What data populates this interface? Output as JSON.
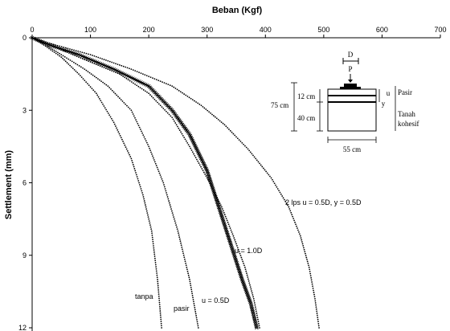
{
  "chart_data": {
    "type": "scatter",
    "xlabel": "Beban (Kgf)",
    "ylabel": "Settlement (mm)",
    "xlim": [
      0,
      700
    ],
    "ylim": [
      0,
      12
    ],
    "y_inverted": true,
    "x_axis_position": "top",
    "x_ticks": [
      "0",
      "100",
      "200",
      "300",
      "400",
      "500",
      "600",
      "700"
    ],
    "y_ticks": [
      "0",
      "3",
      "6",
      "9",
      "12"
    ],
    "grid": false,
    "legend": "none",
    "series": [
      {
        "name": "tanpa",
        "marker": "dot",
        "x": [
          0,
          20,
          50,
          80,
          110,
          140,
          170,
          190,
          205,
          215,
          222
        ],
        "y": [
          0,
          0.3,
          0.8,
          1.5,
          2.3,
          3.5,
          5.0,
          6.5,
          8.0,
          10.0,
          12.0
        ]
      },
      {
        "name": "pasir",
        "marker": "dot",
        "x": [
          0,
          20,
          50,
          90,
          130,
          170,
          200,
          225,
          250,
          270,
          285
        ],
        "y": [
          0,
          0.25,
          0.7,
          1.3,
          2.0,
          3.0,
          4.5,
          6.0,
          8.0,
          10.0,
          12.0
        ]
      },
      {
        "name": "u = 0.5D",
        "marker": "dot",
        "x": [
          0,
          30,
          80,
          150,
          200,
          240,
          270,
          300,
          325,
          345,
          365,
          380,
          390
        ],
        "y": [
          0,
          0.3,
          0.8,
          1.5,
          2.3,
          3.3,
          4.5,
          5.8,
          7.0,
          8.2,
          9.5,
          10.8,
          12.0
        ]
      },
      {
        "name": "u = 1.0D",
        "marker": "star",
        "x": [
          0,
          30,
          80,
          140,
          200,
          240,
          270,
          300,
          320,
          340,
          360,
          375,
          385
        ],
        "y": [
          0,
          0.3,
          0.7,
          1.3,
          2.0,
          3.0,
          4.0,
          5.5,
          7.0,
          8.5,
          10.0,
          11.0,
          12.0
        ]
      },
      {
        "name": "2 lps u = 0.5D, y = 0.5D",
        "marker": "dot",
        "x": [
          0,
          40,
          100,
          170,
          240,
          290,
          330,
          370,
          410,
          440,
          460,
          475,
          485,
          492
        ],
        "y": [
          0,
          0.3,
          0.7,
          1.3,
          2.0,
          2.8,
          3.6,
          4.6,
          5.8,
          7.0,
          8.2,
          9.5,
          10.8,
          12.0
        ]
      }
    ],
    "annotations": {
      "tanpa": "tanpa",
      "pasir": "pasir",
      "u05": "u = 0.5D",
      "u10": "u = 1.0D",
      "two_lps": "2 lps u = 0.5D, y = 0.5D"
    },
    "inset_labels": {
      "D": "D",
      "P": "P",
      "u": "u",
      "y": "y",
      "pasir": "Pasir",
      "tanah1": "Tanah",
      "tanah2": "kohesif",
      "d12": "12 cm",
      "d75": "75 cm",
      "d40": "40 cm",
      "d55": "55 cm"
    }
  }
}
